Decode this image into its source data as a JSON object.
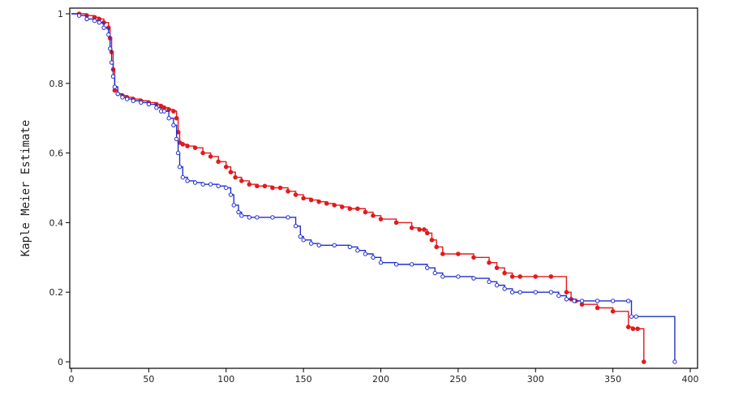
{
  "chart_data": {
    "type": "line",
    "title": "",
    "xlabel": "",
    "ylabel": "Kaple Meier Estimate",
    "xlim": [
      0,
      400
    ],
    "ylim": [
      0,
      1
    ],
    "x_ticks": [
      0,
      50,
      100,
      150,
      200,
      250,
      300,
      350,
      400
    ],
    "y_ticks": [
      0,
      0.2,
      0.4,
      0.6,
      0.8,
      1
    ],
    "y_tick_labels": [
      "0",
      "0.2",
      "0.4",
      "0.6",
      "0.8",
      "1"
    ],
    "grid": false,
    "step": true,
    "series": [
      {
        "color": "#e31a1c",
        "marker": "filled-circle",
        "x": [
          0,
          5,
          10,
          15,
          18,
          21,
          24,
          25,
          26,
          27,
          28,
          30,
          33,
          36,
          40,
          45,
          50,
          55,
          58,
          60,
          63,
          66,
          68,
          69,
          70,
          72,
          75,
          80,
          85,
          90,
          95,
          100,
          103,
          106,
          110,
          115,
          120,
          125,
          130,
          135,
          140,
          145,
          150,
          155,
          160,
          165,
          170,
          175,
          180,
          185,
          190,
          195,
          200,
          210,
          220,
          225,
          228,
          230,
          233,
          236,
          240,
          250,
          260,
          270,
          275,
          280,
          285,
          290,
          300,
          310,
          320,
          323,
          326,
          330,
          340,
          350,
          360,
          363,
          366,
          370
        ],
        "y": [
          1.0,
          1.0,
          0.995,
          0.99,
          0.985,
          0.975,
          0.96,
          0.93,
          0.89,
          0.84,
          0.78,
          0.77,
          0.765,
          0.76,
          0.755,
          0.75,
          0.745,
          0.74,
          0.735,
          0.73,
          0.725,
          0.72,
          0.7,
          0.66,
          0.63,
          0.625,
          0.62,
          0.615,
          0.6,
          0.59,
          0.575,
          0.56,
          0.545,
          0.53,
          0.52,
          0.51,
          0.505,
          0.505,
          0.5,
          0.5,
          0.49,
          0.48,
          0.47,
          0.465,
          0.46,
          0.455,
          0.45,
          0.445,
          0.44,
          0.44,
          0.43,
          0.42,
          0.41,
          0.4,
          0.385,
          0.38,
          0.38,
          0.37,
          0.35,
          0.33,
          0.31,
          0.31,
          0.3,
          0.285,
          0.27,
          0.255,
          0.245,
          0.245,
          0.245,
          0.245,
          0.2,
          0.18,
          0.175,
          0.165,
          0.155,
          0.145,
          0.1,
          0.095,
          0.095,
          0.0
        ]
      },
      {
        "color": "#1f2fd1",
        "marker": "open-circle",
        "x": [
          0,
          5,
          10,
          15,
          18,
          21,
          24,
          25,
          26,
          27,
          28,
          30,
          33,
          36,
          40,
          45,
          50,
          55,
          58,
          60,
          63,
          66,
          68,
          69,
          70,
          72,
          75,
          80,
          85,
          90,
          95,
          100,
          103,
          105,
          108,
          110,
          115,
          120,
          130,
          140,
          145,
          148,
          150,
          155,
          160,
          170,
          180,
          185,
          190,
          195,
          200,
          210,
          220,
          230,
          235,
          240,
          250,
          260,
          270,
          275,
          280,
          285,
          290,
          300,
          310,
          315,
          320,
          325,
          330,
          340,
          350,
          360,
          362,
          365,
          390
        ],
        "y": [
          1.0,
          0.995,
          0.985,
          0.98,
          0.975,
          0.96,
          0.94,
          0.9,
          0.86,
          0.82,
          0.79,
          0.77,
          0.76,
          0.755,
          0.75,
          0.745,
          0.74,
          0.73,
          0.72,
          0.72,
          0.7,
          0.68,
          0.64,
          0.6,
          0.56,
          0.53,
          0.52,
          0.515,
          0.51,
          0.51,
          0.505,
          0.5,
          0.48,
          0.45,
          0.43,
          0.42,
          0.415,
          0.415,
          0.415,
          0.415,
          0.39,
          0.36,
          0.35,
          0.34,
          0.335,
          0.335,
          0.33,
          0.32,
          0.31,
          0.3,
          0.285,
          0.28,
          0.28,
          0.27,
          0.255,
          0.245,
          0.245,
          0.24,
          0.23,
          0.22,
          0.21,
          0.2,
          0.2,
          0.2,
          0.2,
          0.19,
          0.18,
          0.175,
          0.175,
          0.175,
          0.175,
          0.175,
          0.13,
          0.13,
          0.0
        ]
      }
    ]
  }
}
